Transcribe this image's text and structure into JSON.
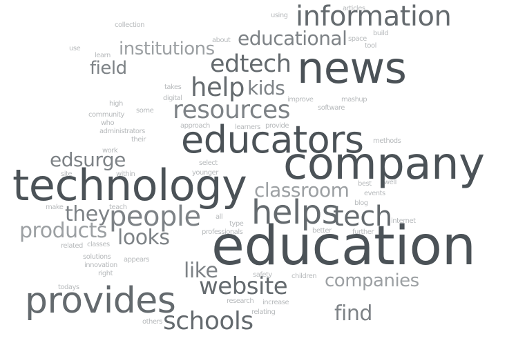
{
  "words": {
    "information": "information",
    "news": "news",
    "educational": "educational",
    "edtech": "edtech",
    "institutions": "institutions",
    "field": "field",
    "help": "help",
    "kids": "kids",
    "resources": "resources",
    "educators": "educators",
    "company": "company",
    "technology": "technology",
    "classroom": "classroom",
    "edsurge": "edsurge",
    "helps": "helps",
    "tech": "tech",
    "people": "people",
    "they": "they",
    "products": "products",
    "looks": "looks",
    "education": "education",
    "like": "like",
    "website": "website",
    "companies": "companies",
    "provides": "provides",
    "schools": "schools",
    "find": "find",
    "articles": "articles",
    "using": "using",
    "collection": "collection",
    "about": "about",
    "space": "space",
    "build": "build",
    "tool": "tool",
    "use": "use",
    "learn": "learn",
    "takes": "takes",
    "digital": "digital",
    "improve": "improve",
    "mashup": "mashup",
    "software": "software",
    "high": "high",
    "some": "some",
    "community": "community",
    "who": "who",
    "approach": "approach",
    "learners": "learners",
    "provide": "provide",
    "administrators": "administrators",
    "their": "their",
    "methods": "methods",
    "work": "work",
    "select": "select",
    "site": "site",
    "within": "within",
    "younger": "younger",
    "best": "best",
    "well": "well",
    "events": "events",
    "blog": "blog",
    "make": "make",
    "teach": "teach",
    "all": "all",
    "internet": "internet",
    "type": "type",
    "professionals": "professionals",
    "better": "better",
    "further": "further",
    "related": "related",
    "classes": "classes",
    "solutions": "solutions",
    "innovation": "innovation",
    "appears": "appears",
    "right": "right",
    "safety": "safety",
    "children": "children",
    "todays": "todays",
    "research": "research",
    "increase": "increase",
    "relating": "relating",
    "others": "others"
  }
}
